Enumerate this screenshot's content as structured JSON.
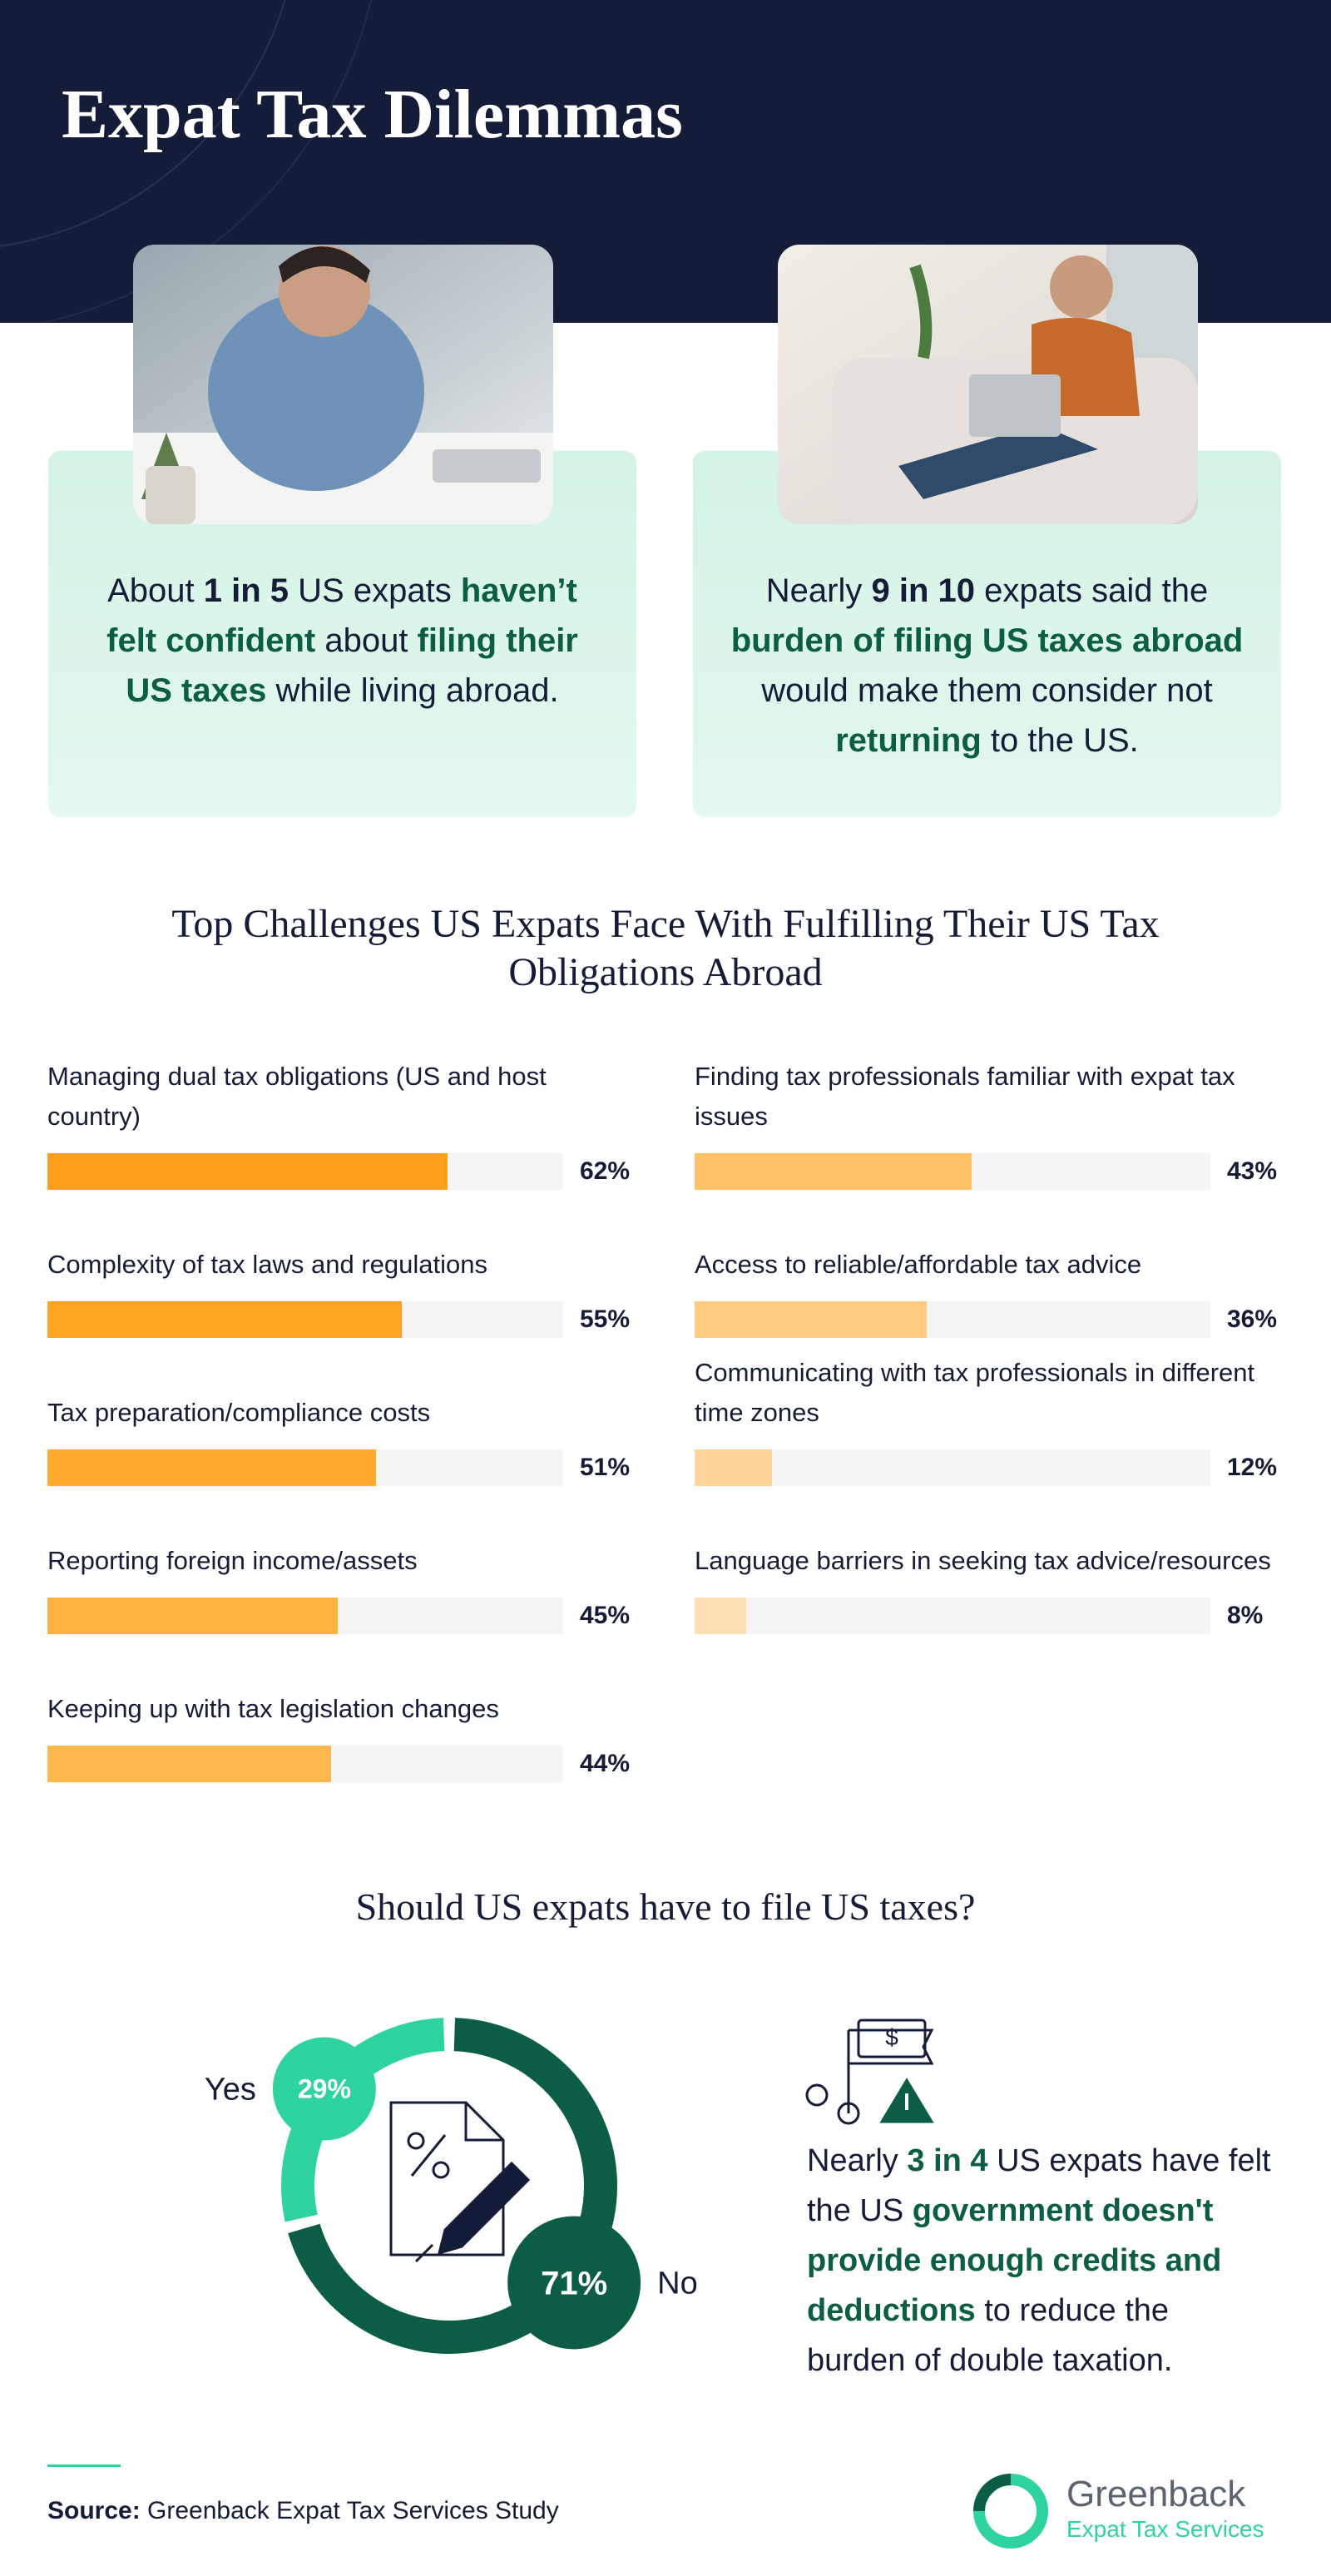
{
  "header": {
    "title": "Expat Tax Dilemmas"
  },
  "cards": [
    {
      "segments": [
        "About ",
        {
          "text": "1 in 5",
          "style": "strong"
        },
        " US expats ",
        {
          "text": "haven’t felt confident",
          "style": "accent"
        },
        " about ",
        {
          "text": "filing their US taxes",
          "style": "accent"
        },
        " while living abroad."
      ]
    },
    {
      "segments": [
        "Nearly ",
        {
          "text": "9 in 10",
          "style": "strong"
        },
        " expats said the ",
        {
          "text": "burden of filing US taxes abroad",
          "style": "accent"
        },
        " would make them consider not ",
        {
          "text": "returning",
          "style": "accent"
        },
        " to the US."
      ]
    }
  ],
  "chart_data": [
    {
      "type": "bar",
      "title": "Top Challenges US Expats Face With Fulfilling Their US Tax Obligations Abroad",
      "categories": [
        "Managing dual tax obligations (US and host country)",
        "Complexity of tax laws and regulations",
        "Tax preparation/compliance costs",
        "Reporting foreign income/assets",
        "Keeping up with tax legislation changes",
        "Finding tax professionals familiar with expat tax issues",
        "Access to reliable/affordable tax advice",
        "Communicating with tax professionals in different time zones",
        "Language barriers in seeking tax advice/resources"
      ],
      "values": [
        62,
        55,
        51,
        45,
        44,
        43,
        36,
        12,
        8
      ],
      "value_labels": [
        "62%",
        "55%",
        "51%",
        "45%",
        "44%",
        "43%",
        "36%",
        "12%",
        "8%"
      ],
      "colors": [
        "#ff9f1a",
        "#ffa321",
        "#ffab30",
        "#ffb241",
        "#ffb84d",
        "#ffc266",
        "#ffcb80",
        "#ffd59c",
        "#ffe0b6"
      ],
      "track_color": "#f5f5f5",
      "xlim": [
        0,
        80
      ]
    },
    {
      "type": "pie",
      "title": "Should US expats have to file US taxes?",
      "categories": [
        "Yes",
        "No"
      ],
      "values": [
        29,
        71
      ],
      "value_labels": [
        "29%",
        "71%"
      ],
      "colors": [
        "#2fd39f",
        "#0b5e45"
      ]
    }
  ],
  "callout": {
    "segments": [
      "Nearly ",
      {
        "text": "3 in 4",
        "style": "accent"
      },
      " US expats have felt the US ",
      {
        "text": "government doesn't provide enough credits and deductions",
        "style": "accent"
      },
      " to reduce the burden of double taxation."
    ]
  },
  "source": {
    "label": "Source:",
    "text": "Greenback Expat Tax Services Study"
  },
  "logo": {
    "name": "Greenback",
    "tagline": "Expat Tax Services"
  }
}
